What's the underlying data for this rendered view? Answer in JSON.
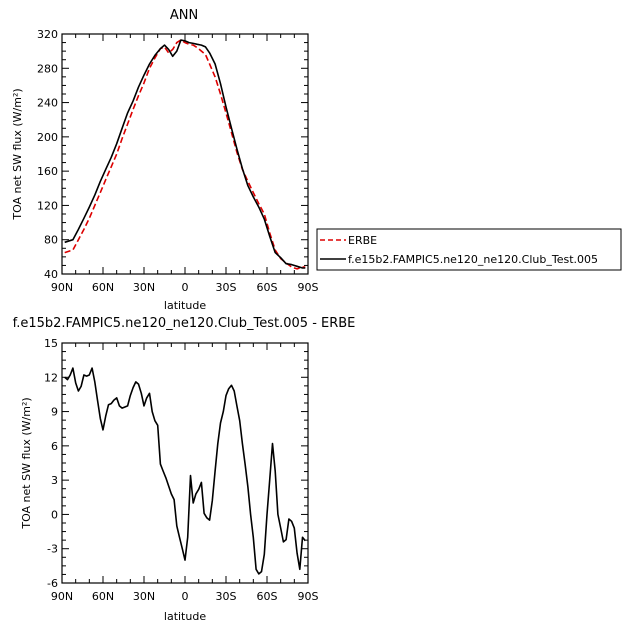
{
  "chart_data": [
    {
      "type": "line",
      "title": "ANN",
      "xlabel": "latitude",
      "ylabel": "TOA net SW flux (W/m²)",
      "xlim": [
        90,
        -90
      ],
      "ylim": [
        40,
        320
      ],
      "x_ticks": [
        90,
        60,
        30,
        0,
        -30,
        -60,
        -90
      ],
      "x_tick_labels": [
        "90N",
        "60N",
        "30N",
        "0",
        "30S",
        "60S",
        "90S"
      ],
      "y_ticks": [
        40,
        80,
        120,
        160,
        200,
        240,
        280,
        320
      ],
      "y_tick_labels": [
        "40",
        "80",
        "120",
        "160",
        "200",
        "240",
        "280",
        "320"
      ],
      "legend_position": "right",
      "series": [
        {
          "name": "ERBE",
          "color": "#dd0000",
          "dash": "dashed",
          "x": [
            88,
            82,
            78,
            74,
            70,
            66,
            62,
            58,
            54,
            50,
            46,
            42,
            38,
            34,
            30,
            26,
            22,
            18,
            15,
            12,
            9,
            6,
            3,
            0,
            -3,
            -6,
            -9,
            -12,
            -15,
            -18,
            -22,
            -26,
            -30,
            -34,
            -38,
            -42,
            -46,
            -50,
            -54,
            -58,
            -62,
            -66,
            -70,
            -74,
            -78,
            -82,
            -86,
            -88
          ],
          "y": [
            65,
            68,
            80,
            92,
            105,
            120,
            135,
            150,
            165,
            180,
            198,
            215,
            232,
            248,
            263,
            280,
            292,
            303,
            305,
            298,
            302,
            310,
            313,
            310,
            308,
            307,
            304,
            300,
            296,
            285,
            270,
            250,
            228,
            205,
            182,
            162,
            148,
            135,
            122,
            110,
            88,
            68,
            58,
            53,
            48,
            46,
            48,
            48
          ]
        },
        {
          "name": "f.e15b2.FAMPIC5.ne120_ne120.Club_Test.005",
          "color": "#000000",
          "dash": "solid",
          "x": [
            88,
            82,
            78,
            74,
            70,
            66,
            62,
            58,
            54,
            50,
            46,
            42,
            38,
            34,
            30,
            26,
            22,
            18,
            15,
            12,
            9,
            6,
            3,
            0,
            -3,
            -6,
            -9,
            -12,
            -15,
            -18,
            -22,
            -26,
            -30,
            -34,
            -38,
            -42,
            -46,
            -50,
            -54,
            -58,
            -62,
            -66,
            -70,
            -74,
            -78,
            -82,
            -86,
            -88
          ],
          "y": [
            77,
            80,
            92,
            105,
            118,
            132,
            148,
            162,
            176,
            192,
            210,
            228,
            242,
            258,
            272,
            285,
            295,
            303,
            307,
            302,
            294,
            300,
            313,
            312,
            310,
            309,
            308,
            307,
            305,
            298,
            285,
            262,
            235,
            210,
            186,
            163,
            143,
            130,
            118,
            104,
            84,
            65,
            59,
            52,
            51,
            49,
            47,
            47
          ]
        }
      ]
    },
    {
      "type": "line",
      "title": "f.e15b2.FAMPIC5.ne120_ne120.Club_Test.005 - ERBE",
      "xlabel": "latitude",
      "ylabel": "TOA net SW flux (W/m²)",
      "xlim": [
        90,
        -90
      ],
      "ylim": [
        -6,
        15
      ],
      "x_ticks": [
        90,
        60,
        30,
        0,
        -30,
        -60,
        -90
      ],
      "x_tick_labels": [
        "90N",
        "60N",
        "30N",
        "0",
        "30S",
        "60S",
        "90S"
      ],
      "y_ticks": [
        -6,
        -3,
        0,
        3,
        6,
        9,
        12,
        15
      ],
      "y_tick_labels": [
        "-6",
        "-3",
        "0",
        "3",
        "6",
        "9",
        "12",
        "15"
      ],
      "series": [
        {
          "color": "#000000",
          "dash": "solid",
          "x": [
            88,
            86,
            84,
            82,
            80,
            78,
            76,
            74,
            72,
            70,
            68,
            66,
            64,
            62,
            60,
            58,
            56,
            54,
            52,
            50,
            48,
            46,
            44,
            42,
            40,
            38,
            36,
            34,
            32,
            30,
            28,
            26,
            24,
            22,
            20,
            18,
            16,
            14,
            12,
            10,
            8,
            6,
            4,
            2,
            0,
            -2,
            -4,
            -6,
            -8,
            -10,
            -12,
            -14,
            -16,
            -18,
            -20,
            -22,
            -24,
            -26,
            -28,
            -30,
            -32,
            -34,
            -36,
            -38,
            -40,
            -42,
            -44,
            -46,
            -48,
            -50,
            -52,
            -54,
            -56,
            -58,
            -60,
            -62,
            -64,
            -66,
            -68,
            -70,
            -72,
            -74,
            -76,
            -78,
            -80,
            -82,
            -84,
            -86,
            -88
          ],
          "y": [
            12.0,
            11.8,
            12.2,
            12.8,
            11.5,
            10.8,
            11.2,
            12.2,
            12.1,
            12.2,
            12.8,
            11.6,
            10.0,
            8.4,
            7.4,
            8.6,
            9.6,
            9.7,
            10.0,
            10.2,
            9.5,
            9.3,
            9.4,
            9.5,
            10.4,
            11.1,
            11.6,
            11.4,
            10.6,
            9.5,
            10.2,
            10.6,
            9.0,
            8.2,
            7.8,
            4.4,
            3.8,
            3.2,
            2.5,
            1.8,
            1.3,
            -1.0,
            -2.0,
            -3.0,
            -4.0,
            -2.0,
            3.4,
            1.0,
            1.8,
            2.2,
            2.8,
            0.1,
            -0.3,
            -0.5,
            1.2,
            3.8,
            6.2,
            8.0,
            9.0,
            10.4,
            11.0,
            11.3,
            10.8,
            9.5,
            8.2,
            6.2,
            4.4,
            2.4,
            0.0,
            -2.0,
            -4.8,
            -5.2,
            -5.0,
            -3.5,
            0.0,
            3.0,
            6.2,
            3.8,
            0.0,
            -1.2,
            -2.4,
            -2.2,
            -0.4,
            -0.6,
            -1.2,
            -3.4,
            -4.8,
            -2.0,
            -2.3
          ]
        }
      ]
    }
  ]
}
